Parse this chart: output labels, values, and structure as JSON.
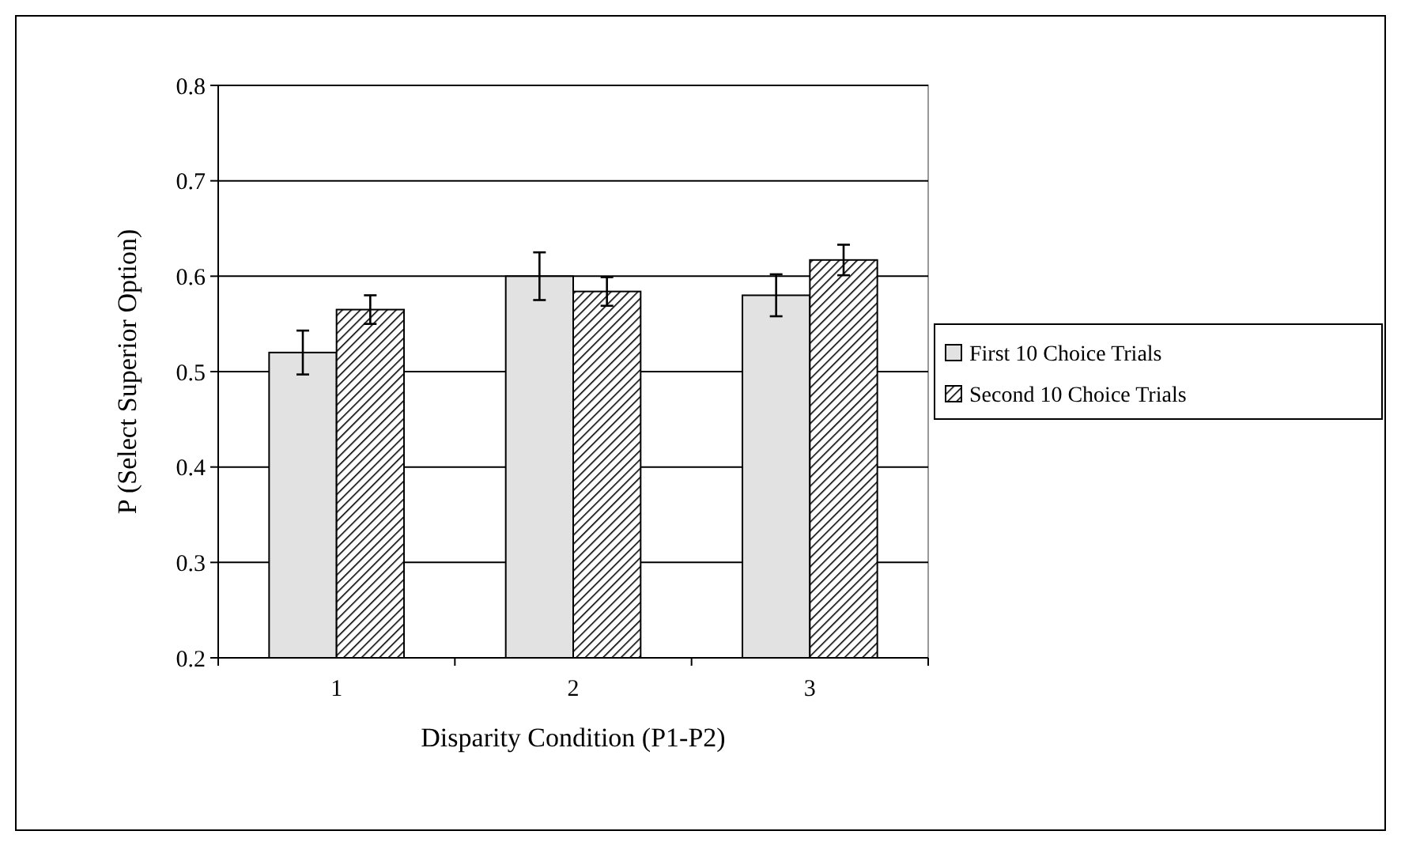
{
  "chart_data": {
    "type": "bar",
    "xlabel": "Disparity Condition (P1-P2)",
    "ylabel": "P (Select Superior Option)",
    "categories": [
      "1",
      "2",
      "3"
    ],
    "series": [
      {
        "name": "First 10 Choice Trials",
        "color": "#e2e2e2",
        "values": [
          0.52,
          0.6,
          0.58
        ],
        "errors": [
          0.023,
          0.025,
          0.022
        ]
      },
      {
        "name": "Second 10 Choice Trials",
        "color": "#000000",
        "values": [
          0.565,
          0.584,
          0.617
        ],
        "errors": [
          0.015,
          0.015,
          0.016
        ]
      }
    ],
    "ylim": [
      0.2,
      0.8
    ],
    "yticks": [
      {
        "value": 0.2,
        "label": "0.2"
      },
      {
        "value": 0.3,
        "label": "0.3"
      },
      {
        "value": 0.4,
        "label": "0.4"
      },
      {
        "value": 0.5,
        "label": "0.5"
      },
      {
        "value": 0.6,
        "label": "0.6"
      },
      {
        "value": 0.7,
        "label": "0.7"
      },
      {
        "value": 0.8,
        "label": "0.8"
      }
    ],
    "grid": "y",
    "legend": "right"
  }
}
